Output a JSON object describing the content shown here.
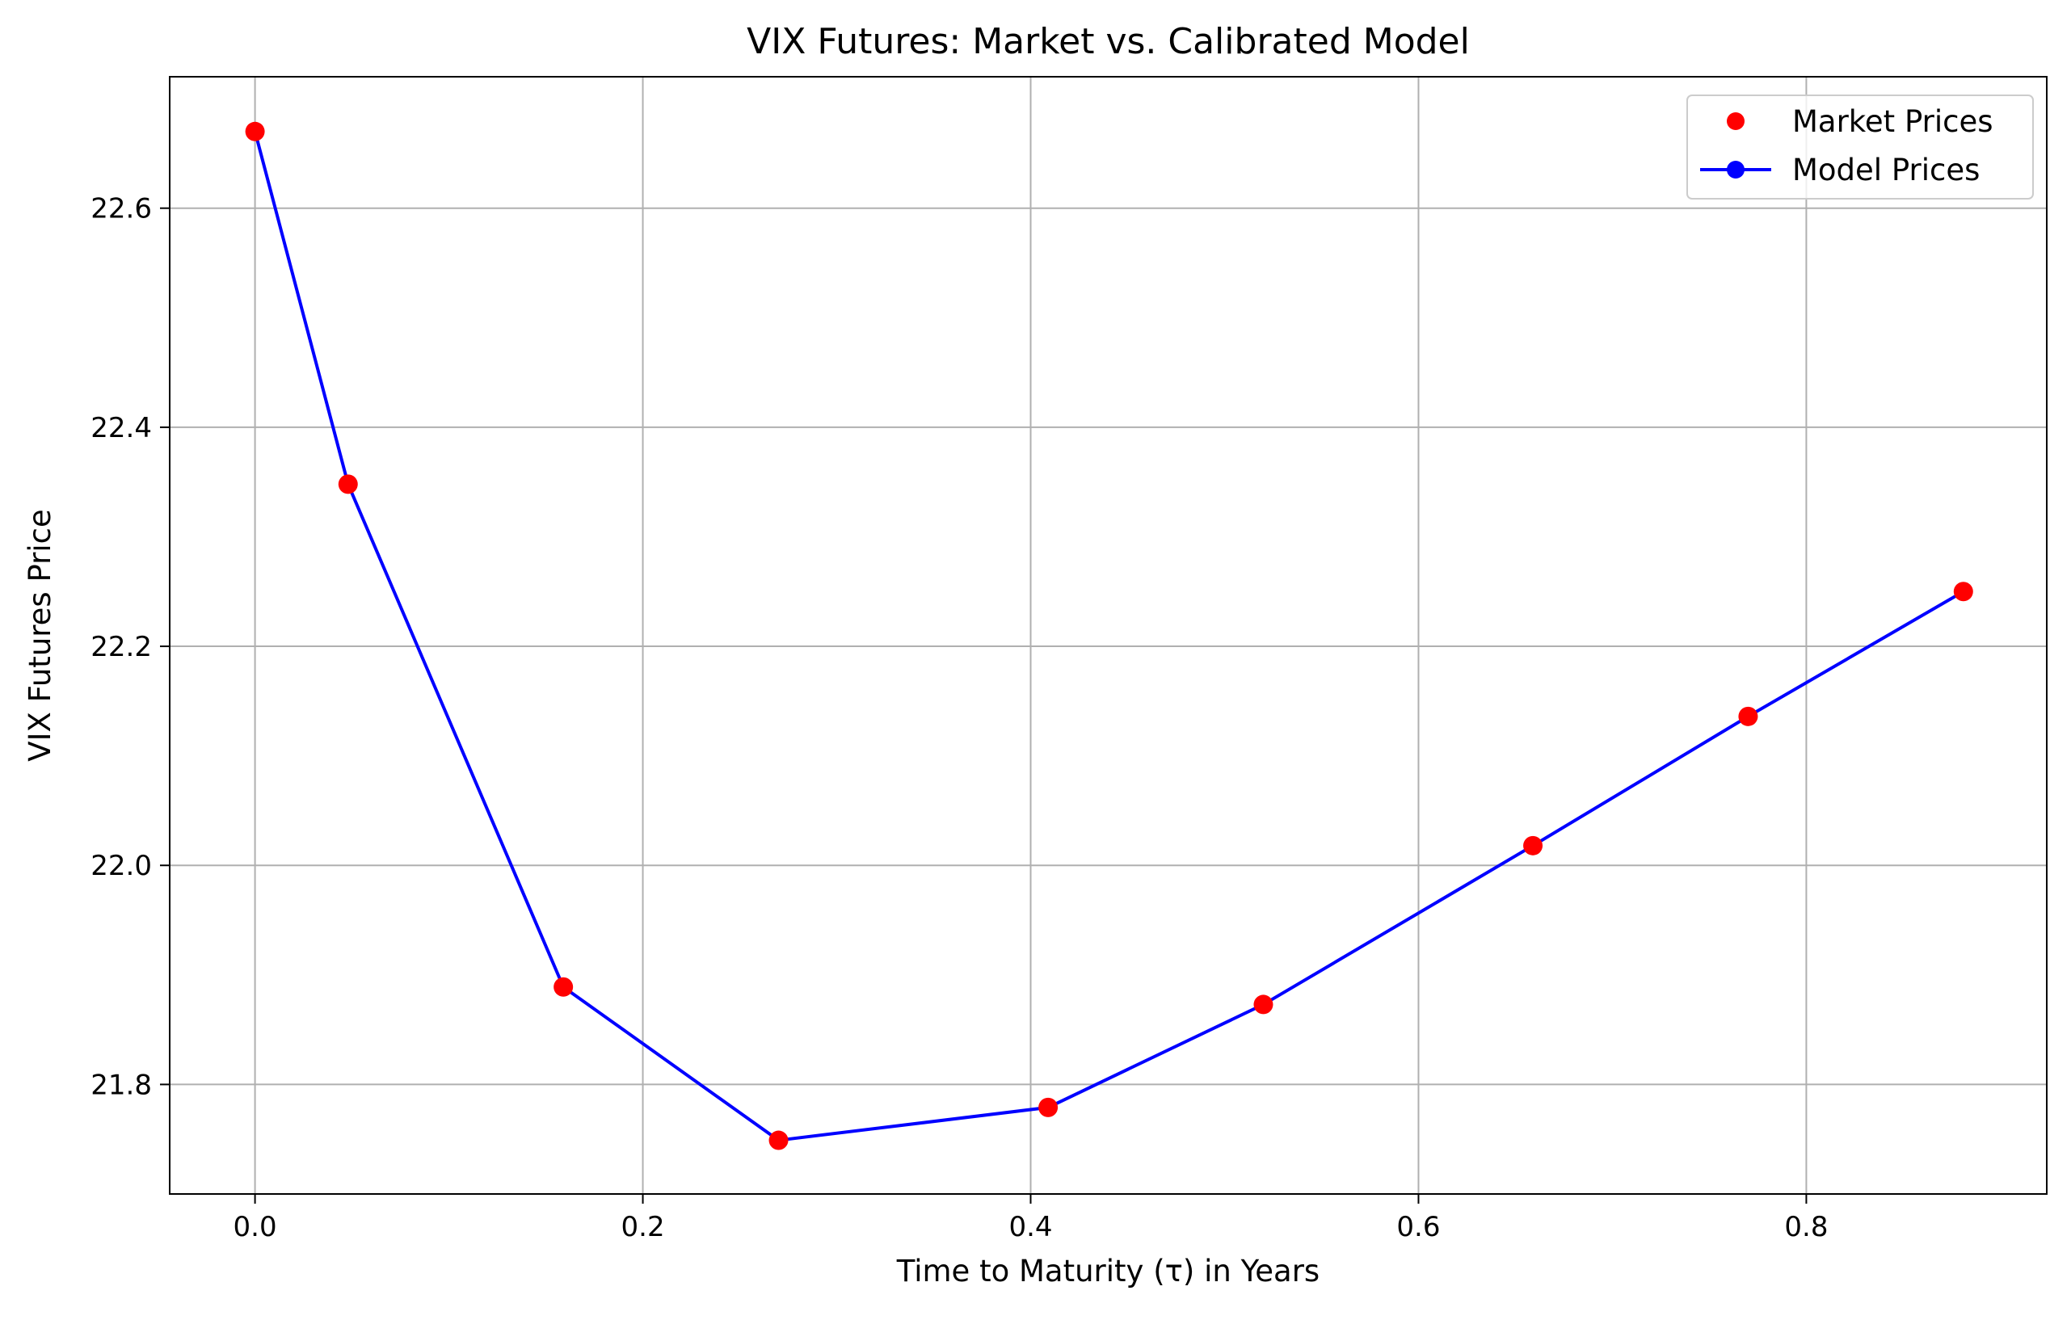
{
  "chart_data": {
    "type": "line",
    "title": "VIX Futures: Market vs. Calibrated Model",
    "xlabel": "Time to Maturity (τ) in Years",
    "ylabel": "VIX Futures Price",
    "xlim": [
      -0.044,
      0.924
    ],
    "ylim": [
      21.7,
      22.72
    ],
    "xticks": [
      0.0,
      0.2,
      0.4,
      0.6,
      0.8
    ],
    "xtick_labels": [
      "0.0",
      "0.2",
      "0.4",
      "0.6",
      "0.8"
    ],
    "yticks": [
      21.8,
      22.0,
      22.2,
      22.4,
      22.6
    ],
    "ytick_labels": [
      "21.8",
      "22.0",
      "22.2",
      "22.4",
      "22.6"
    ],
    "grid": true,
    "legend_position": "top-right",
    "series": [
      {
        "name": "Market Prices",
        "kind": "scatter",
        "color": "#ff0000",
        "x": [
          0.0,
          0.048,
          0.159,
          0.27,
          0.409,
          0.52,
          0.659,
          0.77,
          0.881
        ],
        "y": [
          22.67,
          22.348,
          21.889,
          21.749,
          21.779,
          21.873,
          22.018,
          22.136,
          22.25
        ]
      },
      {
        "name": "Model Prices",
        "kind": "line-marker",
        "color": "#0000ff",
        "x": [
          0.0,
          0.048,
          0.159,
          0.27,
          0.409,
          0.52,
          0.659,
          0.77,
          0.881
        ],
        "y": [
          22.67,
          22.348,
          21.889,
          21.749,
          21.779,
          21.873,
          22.018,
          22.136,
          22.25
        ]
      }
    ]
  }
}
